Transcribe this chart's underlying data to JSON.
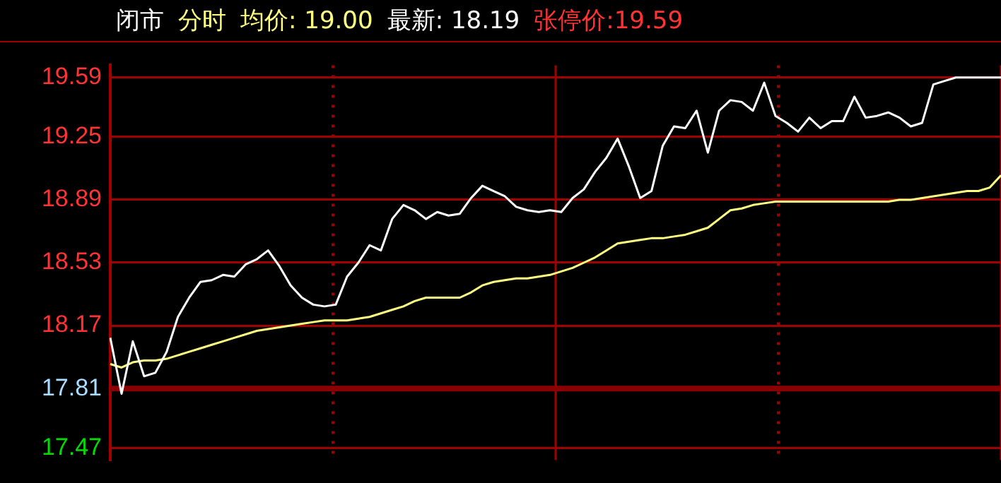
{
  "chart_data": {
    "type": "line",
    "title": "闭市",
    "annotations": [
      "分时",
      "均价: 19.00",
      "最新: 18.19",
      "张停价:19.59"
    ],
    "categories": [
      null,
      null,
      null,
      null,
      null,
      null,
      null,
      null,
      null,
      null,
      null,
      null,
      null,
      null,
      null,
      null,
      null,
      null,
      null,
      null,
      null,
      null,
      null,
      null,
      null,
      null,
      null,
      null,
      null,
      null,
      null,
      null,
      null,
      null,
      null,
      null,
      null,
      null,
      null,
      null,
      null,
      null,
      null,
      null,
      null,
      null,
      null,
      null,
      null,
      null,
      null,
      null,
      null,
      null,
      null,
      null,
      null,
      null,
      null,
      null,
      null,
      null,
      null,
      null,
      null,
      null,
      null,
      null,
      null,
      null,
      null,
      null,
      null,
      null,
      null,
      null,
      null,
      null,
      null,
      null
    ],
    "series": [
      {
        "color": "#ffffff",
        "values": [
          18.1,
          17.78,
          18.08,
          17.88,
          17.9,
          18.02,
          18.22,
          18.33,
          18.42,
          18.43,
          18.46,
          18.45,
          18.52,
          18.55,
          18.6,
          18.51,
          18.4,
          18.33,
          18.29,
          18.28,
          18.29,
          18.45,
          18.53,
          18.63,
          18.6,
          18.78,
          18.86,
          18.83,
          18.78,
          18.82,
          18.8,
          18.81,
          18.9,
          18.97,
          18.94,
          18.91,
          18.85,
          18.83,
          18.82,
          18.83,
          18.82,
          18.9,
          18.95,
          19.05,
          19.13,
          19.24,
          19.08,
          18.9,
          18.94,
          19.2,
          19.31,
          19.3,
          19.4,
          19.16,
          19.4,
          19.46,
          19.45,
          19.4,
          19.56,
          19.37,
          19.33,
          19.28,
          19.36,
          19.3,
          19.34,
          19.34,
          19.48,
          19.36,
          19.37,
          19.39,
          19.36,
          19.31,
          19.33,
          19.55,
          19.57,
          19.59,
          19.59,
          19.59,
          19.59,
          19.59
        ]
      },
      {
        "color": "#ffff80",
        "values": [
          17.95,
          17.93,
          17.96,
          17.97,
          17.97,
          17.98,
          18.0,
          18.02,
          18.04,
          18.06,
          18.08,
          18.1,
          18.12,
          18.14,
          18.15,
          18.16,
          18.17,
          18.18,
          18.19,
          18.2,
          18.2,
          18.2,
          18.21,
          18.22,
          18.24,
          18.26,
          18.28,
          18.31,
          18.33,
          18.33,
          18.33,
          18.33,
          18.36,
          18.4,
          18.42,
          18.43,
          18.44,
          18.44,
          18.45,
          18.46,
          18.48,
          18.5,
          18.53,
          18.56,
          18.6,
          18.64,
          18.65,
          18.66,
          18.67,
          18.67,
          18.68,
          18.69,
          18.71,
          18.73,
          18.78,
          18.83,
          18.84,
          18.86,
          18.87,
          18.88,
          18.88,
          18.88,
          18.88,
          18.88,
          18.88,
          18.88,
          18.88,
          18.88,
          18.88,
          18.88,
          18.89,
          18.89,
          18.9,
          18.91,
          18.92,
          18.93,
          18.94,
          18.94,
          18.96,
          19.03
        ]
      }
    ],
    "ylim": [
      17.4,
      19.66
    ],
    "yticks": [
      17.47,
      17.81,
      18.17,
      18.53,
      18.89,
      19.25,
      19.59
    ],
    "ref_lines": [
      {
        "axis": "y",
        "value": 17.81,
        "color": "#8b0000"
      }
    ],
    "grid": true,
    "legend": false,
    "marker": "none",
    "line_style": "solid"
  }
}
